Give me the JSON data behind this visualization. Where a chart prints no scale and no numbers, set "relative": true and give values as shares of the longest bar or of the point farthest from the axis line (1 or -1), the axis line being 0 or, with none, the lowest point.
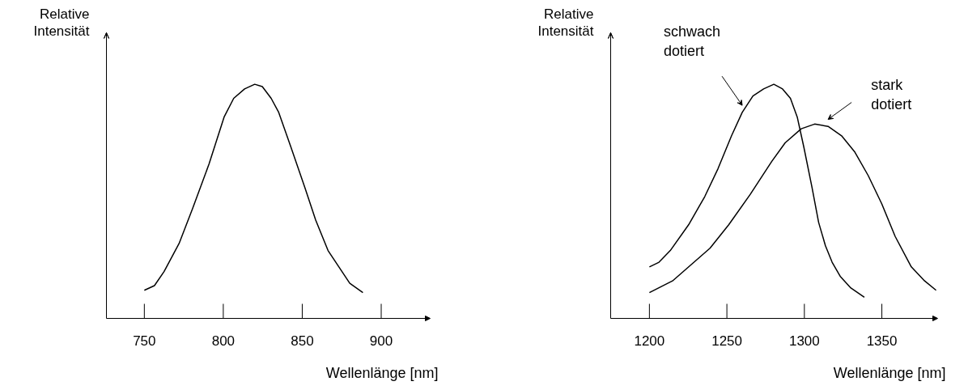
{
  "chart_data": [
    {
      "type": "line",
      "relative": true,
      "ylabel": "Relative Intensität",
      "xlabel": "Wellenlänge [nm]",
      "xlim": [
        726,
        931
      ],
      "xticks": [
        750,
        800,
        850,
        900
      ],
      "series": [
        {
          "color": "#000000",
          "x": [
            750,
            756.4,
            762.5,
            772,
            780.6,
            791,
            800.5,
            806.6,
            813.5,
            819.9,
            824.7,
            830.3,
            835.1,
            842.9,
            851.6,
            858.5,
            866.3,
            873.2,
            880.1,
            888.4
          ],
          "values": [
            0.12,
            0.14,
            0.2,
            0.32,
            0.47,
            0.66,
            0.86,
            0.94,
            0.98,
            1.0,
            0.99,
            0.94,
            0.88,
            0.73,
            0.56,
            0.42,
            0.29,
            0.22,
            0.15,
            0.11
          ]
        }
      ]
    },
    {
      "type": "line",
      "relative": true,
      "ylabel": "Relative Intensität",
      "xlabel": "Wellenlänge [nm]",
      "xlim": [
        1175,
        1386
      ],
      "xticks": [
        1200,
        1250,
        1300,
        1350
      ],
      "series": [
        {
          "name": "schwach dotiert",
          "color": "#000000",
          "x": [
            1200,
            1206.2,
            1213.5,
            1225.3,
            1235.7,
            1244.3,
            1253,
            1259.9,
            1266.8,
            1273.7,
            1280.3,
            1285.9,
            1291,
            1295.4,
            1299.7,
            1304.9,
            1309.2,
            1313.6,
            1317.9,
            1323.1,
            1330,
            1338.7
          ],
          "values": [
            0.22,
            0.24,
            0.29,
            0.4,
            0.52,
            0.64,
            0.78,
            0.88,
            0.95,
            0.98,
            1.0,
            0.98,
            0.94,
            0.86,
            0.73,
            0.56,
            0.41,
            0.31,
            0.24,
            0.18,
            0.13,
            0.09
          ]
        },
        {
          "name": "stark dotiert",
          "color": "#000000",
          "x": [
            1200,
            1214.9,
            1227,
            1239.1,
            1251.2,
            1265.1,
            1278.9,
            1287.6,
            1298,
            1306.6,
            1315.3,
            1324,
            1332.6,
            1341.2,
            1349.9,
            1358.6,
            1369,
            1377.6,
            1385
          ],
          "values": [
            0.11,
            0.16,
            0.23,
            0.3,
            0.4,
            0.53,
            0.67,
            0.75,
            0.81,
            0.83,
            0.82,
            0.78,
            0.71,
            0.61,
            0.49,
            0.35,
            0.22,
            0.16,
            0.12
          ]
        }
      ]
    }
  ]
}
